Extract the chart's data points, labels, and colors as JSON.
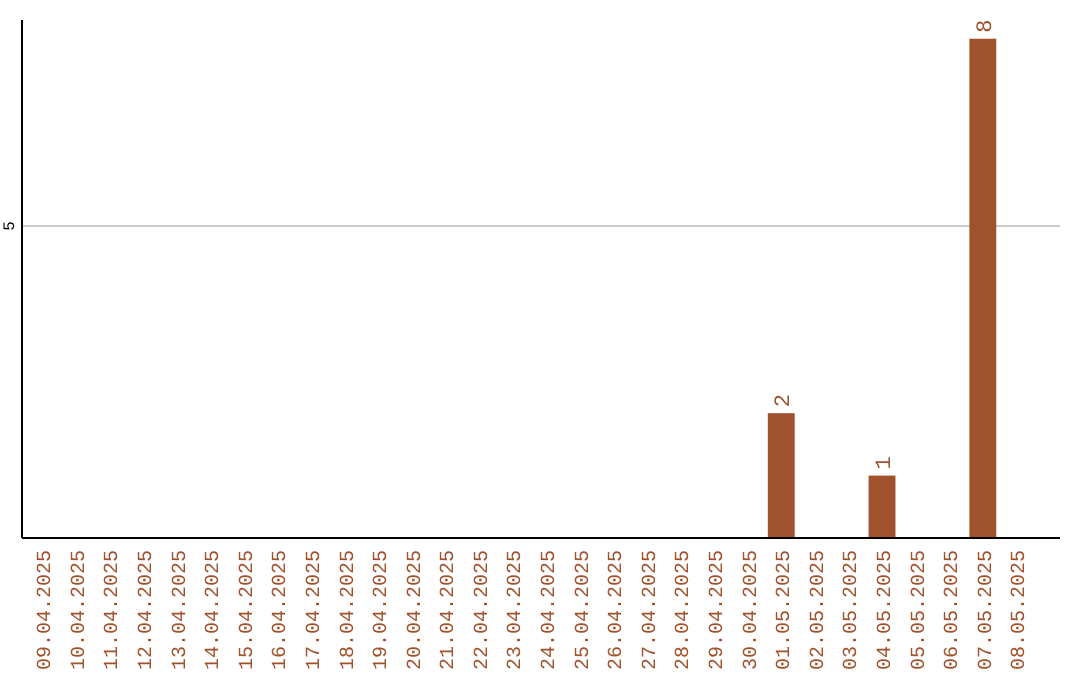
{
  "chart_data": {
    "type": "bar",
    "categories": [
      "09.04.2025",
      "10.04.2025",
      "11.04.2025",
      "12.04.2025",
      "13.04.2025",
      "14.04.2025",
      "15.04.2025",
      "16.04.2025",
      "17.04.2025",
      "18.04.2025",
      "19.04.2025",
      "20.04.2025",
      "21.04.2025",
      "22.04.2025",
      "23.04.2025",
      "24.04.2025",
      "25.04.2025",
      "26.04.2025",
      "27.04.2025",
      "28.04.2025",
      "29.04.2025",
      "30.04.2025",
      "01.05.2025",
      "02.05.2025",
      "03.05.2025",
      "04.05.2025",
      "05.05.2025",
      "06.05.2025",
      "07.05.2025",
      "08.05.2025"
    ],
    "values": [
      null,
      null,
      null,
      null,
      null,
      null,
      null,
      null,
      null,
      null,
      null,
      null,
      null,
      null,
      null,
      null,
      null,
      null,
      null,
      null,
      null,
      null,
      2,
      null,
      null,
      1,
      null,
      null,
      8,
      null
    ],
    "data_labels": true,
    "color": "#a0522d",
    "ylim": [
      0,
      8.3
    ],
    "yticks": [
      5
    ],
    "grid": "y"
  }
}
